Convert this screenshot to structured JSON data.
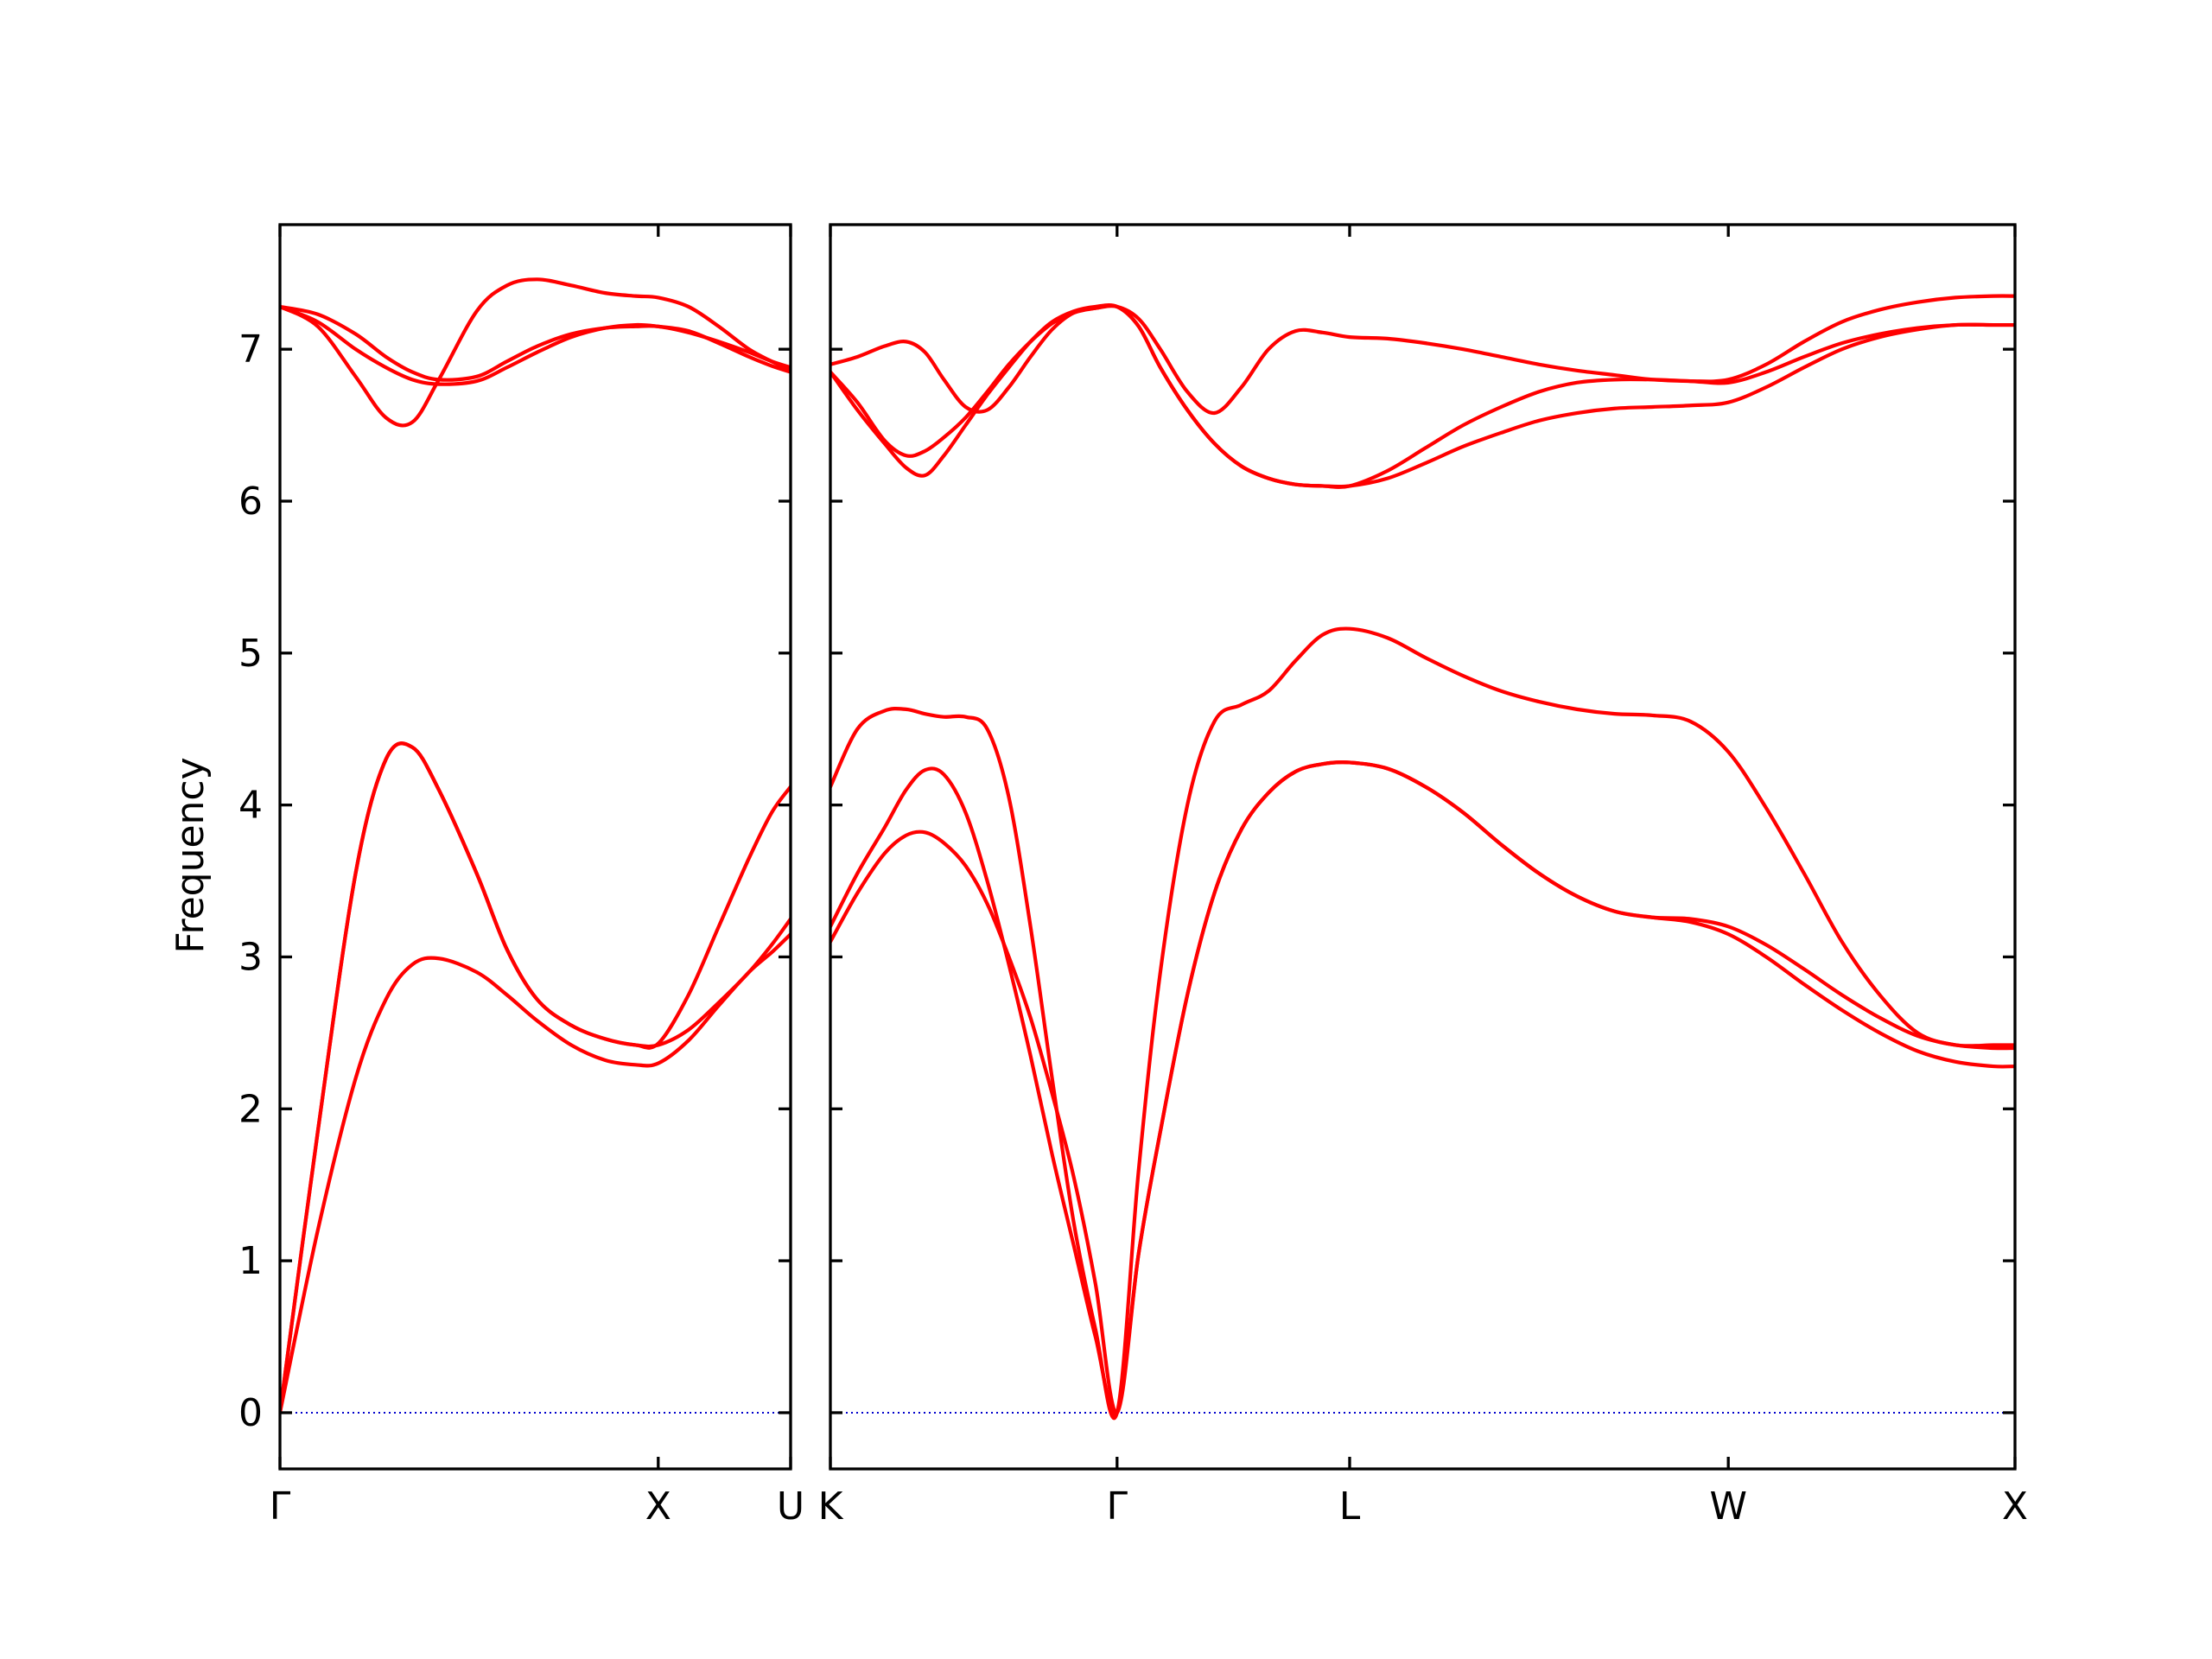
{
  "chart_data": {
    "type": "line",
    "title": "",
    "ylabel": "Frequency",
    "ylim": [
      -0.37,
      7.82
    ],
    "yticks": [
      0,
      1,
      2,
      3,
      4,
      5,
      6,
      7
    ],
    "colors": {
      "bands": "#ff0000",
      "zero_line": "#0000cc",
      "axes": "#000000"
    },
    "zero_line": {
      "y": 0,
      "style": "dotted"
    },
    "panels": [
      {
        "xlim": [
          0,
          1.35
        ],
        "xticks": [
          {
            "x": 0,
            "label": "Γ"
          },
          {
            "x": 1.0,
            "label": "X"
          },
          {
            "x": 1.35,
            "label": "U"
          }
        ],
        "series": [
          {
            "x": [
              0,
              0.1,
              0.2,
              0.28,
              0.35,
              0.42,
              0.52,
              0.6,
              0.68,
              0.77,
              0.86,
              0.94,
              1.0,
              1.08,
              1.16,
              1.24,
              1.3,
              1.35
            ],
            "y": [
              0,
              1.2,
              2.2,
              2.72,
              2.95,
              2.99,
              2.9,
              2.75,
              2.58,
              2.42,
              2.32,
              2.29,
              2.3,
              2.45,
              2.68,
              2.9,
              3.03,
              3.15
            ]
          },
          {
            "x": [
              0,
              0.1,
              0.2,
              0.28,
              0.35,
              0.42,
              0.52,
              0.6,
              0.68,
              0.77,
              0.86,
              0.94,
              1.0,
              1.08,
              1.16,
              1.24,
              1.3,
              1.35
            ],
            "y": [
              0,
              1.85,
              3.55,
              4.3,
              4.38,
              4.1,
              3.55,
              3.05,
              2.72,
              2.55,
              2.46,
              2.42,
              2.42,
              2.52,
              2.7,
              2.9,
              3.08,
              3.25
            ]
          },
          {
            "x": [
              0,
              0.1,
              0.2,
              0.28,
              0.35,
              0.42,
              0.52,
              0.6,
              0.68,
              0.77,
              0.86,
              0.94,
              1.0,
              1.08,
              1.16,
              1.24,
              1.3,
              1.35
            ],
            "y": [
              0,
              1.85,
              3.55,
              4.3,
              4.38,
              4.1,
              3.55,
              3.05,
              2.72,
              2.55,
              2.46,
              2.42,
              2.43,
              2.75,
              3.2,
              3.65,
              3.95,
              4.12
            ]
          },
          {
            "x": [
              0,
              0.1,
              0.2,
              0.28,
              0.35,
              0.42,
              0.52,
              0.6,
              0.68,
              0.77,
              0.86,
              0.94,
              1.0,
              1.08,
              1.16,
              1.24,
              1.3,
              1.35
            ],
            "y": [
              7.28,
              7.18,
              7.0,
              6.88,
              6.8,
              6.77,
              6.79,
              6.88,
              6.98,
              7.08,
              7.14,
              7.16,
              7.15,
              7.12,
              7.04,
              6.95,
              6.89,
              6.85
            ]
          },
          {
            "x": [
              0,
              0.1,
              0.2,
              0.28,
              0.35,
              0.42,
              0.52,
              0.6,
              0.68,
              0.77,
              0.86,
              0.94,
              1.0,
              1.08,
              1.16,
              1.24,
              1.3,
              1.35
            ],
            "y": [
              7.28,
              7.15,
              6.82,
              6.55,
              6.52,
              6.8,
              7.25,
              7.42,
              7.46,
              7.42,
              7.37,
              7.35,
              7.34,
              7.28,
              7.15,
              7.0,
              6.92,
              6.86
            ]
          },
          {
            "x": [
              0,
              0.1,
              0.2,
              0.28,
              0.35,
              0.42,
              0.52,
              0.6,
              0.68,
              0.77,
              0.86,
              0.94,
              1.0,
              1.08,
              1.16,
              1.24,
              1.3,
              1.35
            ],
            "y": [
              7.28,
              7.23,
              7.1,
              6.95,
              6.85,
              6.8,
              6.82,
              6.92,
              7.02,
              7.1,
              7.14,
              7.15,
              7.15,
              7.11,
              7.05,
              6.98,
              6.92,
              6.88
            ]
          }
        ]
      },
      {
        "xlim": [
          0,
          4.38
        ],
        "xticks": [
          {
            "x": 0,
            "label": "K"
          },
          {
            "x": 1.06,
            "label": "Γ"
          },
          {
            "x": 1.92,
            "label": "L"
          },
          {
            "x": 3.32,
            "label": "W"
          },
          {
            "x": 4.38,
            "label": "X"
          }
        ],
        "series": [
          {
            "x": [
              0,
              0.1,
              0.2,
              0.28,
              0.35,
              0.42,
              0.5,
              0.58,
              0.66,
              0.74,
              0.82,
              0.9,
              0.98,
              1.06,
              1.14,
              1.22,
              1.32,
              1.42,
              1.52,
              1.62,
              1.72,
              1.82,
              1.92,
              2.06,
              2.2,
              2.34,
              2.48,
              2.62,
              2.76,
              2.9,
              3.04,
              3.18,
              3.32,
              3.46,
              3.6,
              3.74,
              3.88,
              4.02,
              4.16,
              4.3,
              4.38
            ],
            "y": [
              3.1,
              3.42,
              3.68,
              3.8,
              3.82,
              3.75,
              3.6,
              3.35,
              3.0,
              2.6,
              2.1,
              1.55,
              0.85,
              0,
              1.05,
              1.85,
              2.75,
              3.42,
              3.84,
              4.08,
              4.22,
              4.27,
              4.28,
              4.24,
              4.12,
              3.95,
              3.74,
              3.55,
              3.4,
              3.3,
              3.26,
              3.23,
              3.15,
              3.0,
              2.82,
              2.65,
              2.5,
              2.38,
              2.31,
              2.28,
              2.28
            ]
          },
          {
            "x": [
              0,
              0.1,
              0.2,
              0.28,
              0.35,
              0.42,
              0.5,
              0.58,
              0.66,
              0.74,
              0.82,
              0.9,
              0.98,
              1.06,
              1.14,
              1.22,
              1.32,
              1.42,
              1.52,
              1.62,
              1.72,
              1.82,
              1.92,
              2.06,
              2.2,
              2.34,
              2.48,
              2.62,
              2.76,
              2.9,
              3.04,
              3.18,
              3.32,
              3.46,
              3.6,
              3.74,
              3.88,
              4.02,
              4.16,
              4.3,
              4.38
            ],
            "y": [
              3.2,
              3.55,
              3.85,
              4.1,
              4.23,
              4.2,
              3.95,
              3.5,
              2.95,
              2.35,
              1.7,
              1.1,
              0.5,
              0,
              1.05,
              1.85,
              2.75,
              3.42,
              3.84,
              4.08,
              4.22,
              4.27,
              4.28,
              4.24,
              4.12,
              3.95,
              3.74,
              3.55,
              3.4,
              3.3,
              3.26,
              3.25,
              3.2,
              3.08,
              2.92,
              2.75,
              2.6,
              2.48,
              2.42,
              2.4,
              2.4
            ]
          },
          {
            "x": [
              0,
              0.1,
              0.2,
              0.28,
              0.35,
              0.42,
              0.5,
              0.58,
              0.66,
              0.74,
              0.82,
              0.9,
              0.98,
              1.06,
              1.14,
              1.22,
              1.32,
              1.42,
              1.52,
              1.62,
              1.72,
              1.82,
              1.92,
              2.06,
              2.2,
              2.34,
              2.48,
              2.62,
              2.76,
              2.9,
              3.04,
              3.18,
              3.32,
              3.46,
              3.6,
              3.74,
              3.88,
              4.02,
              4.16,
              4.3,
              4.38
            ],
            "y": [
              4.12,
              4.5,
              4.62,
              4.63,
              4.6,
              4.58,
              4.58,
              4.5,
              4.05,
              3.2,
              2.2,
              1.25,
              0.55,
              0,
              1.6,
              2.9,
              4.0,
              4.55,
              4.66,
              4.75,
              4.95,
              5.12,
              5.16,
              5.1,
              4.97,
              4.85,
              4.75,
              4.68,
              4.63,
              4.6,
              4.59,
              4.55,
              4.35,
              3.98,
              3.55,
              3.1,
              2.75,
              2.5,
              2.42,
              2.42,
              2.42
            ]
          },
          {
            "x": [
              0,
              0.1,
              0.2,
              0.28,
              0.35,
              0.42,
              0.5,
              0.58,
              0.66,
              0.74,
              0.82,
              0.9,
              0.98,
              1.06,
              1.14,
              1.22,
              1.32,
              1.42,
              1.52,
              1.62,
              1.72,
              1.82,
              1.92,
              2.06,
              2.2,
              2.34,
              2.48,
              2.62,
              2.76,
              2.9,
              3.04,
              3.18,
              3.32,
              3.46,
              3.6,
              3.74,
              3.88,
              4.02,
              4.16,
              4.3,
              4.38
            ],
            "y": [
              6.85,
              6.65,
              6.4,
              6.3,
              6.33,
              6.42,
              6.55,
              6.72,
              6.9,
              7.05,
              7.17,
              7.24,
              7.27,
              7.28,
              7.15,
              6.88,
              6.6,
              6.38,
              6.23,
              6.15,
              6.11,
              6.1,
              6.1,
              6.2,
              6.35,
              6.5,
              6.62,
              6.72,
              6.78,
              6.8,
              6.8,
              6.79,
              6.78,
              6.85,
              6.95,
              7.04,
              7.1,
              7.14,
              7.16,
              7.16,
              7.16
            ]
          },
          {
            "x": [
              0,
              0.1,
              0.2,
              0.28,
              0.35,
              0.42,
              0.5,
              0.58,
              0.66,
              0.74,
              0.82,
              0.9,
              0.98,
              1.06,
              1.14,
              1.22,
              1.32,
              1.42,
              1.52,
              1.62,
              1.72,
              1.82,
              1.92,
              2.06,
              2.2,
              2.34,
              2.48,
              2.62,
              2.76,
              2.9,
              3.04,
              3.18,
              3.32,
              3.46,
              3.6,
              3.74,
              3.88,
              4.02,
              4.16,
              4.3,
              4.38
            ],
            "y": [
              6.85,
              6.6,
              6.38,
              6.22,
              6.17,
              6.3,
              6.5,
              6.7,
              6.88,
              7.05,
              7.18,
              7.25,
              7.28,
              7.28,
              7.15,
              6.88,
              6.6,
              6.38,
              6.23,
              6.15,
              6.11,
              6.1,
              6.1,
              6.15,
              6.25,
              6.36,
              6.45,
              6.53,
              6.58,
              6.61,
              6.62,
              6.63,
              6.65,
              6.75,
              6.88,
              7.0,
              7.08,
              7.13,
              7.16,
              7.16,
              7.16
            ]
          },
          {
            "x": [
              0,
              0.1,
              0.2,
              0.28,
              0.35,
              0.42,
              0.5,
              0.58,
              0.66,
              0.74,
              0.82,
              0.9,
              0.98,
              1.06,
              1.14,
              1.22,
              1.32,
              1.42,
              1.52,
              1.62,
              1.72,
              1.82,
              1.92,
              2.06,
              2.2,
              2.34,
              2.48,
              2.62,
              2.76,
              2.9,
              3.04,
              3.18,
              3.32,
              3.46,
              3.6,
              3.74,
              3.88,
              4.02,
              4.16,
              4.3,
              4.38
            ],
            "y": [
              6.9,
              6.95,
              7.02,
              7.05,
              6.98,
              6.8,
              6.62,
              6.6,
              6.75,
              6.95,
              7.13,
              7.24,
              7.27,
              7.28,
              7.2,
              7.0,
              6.72,
              6.58,
              6.75,
              7.0,
              7.12,
              7.11,
              7.08,
              7.07,
              7.04,
              7.0,
              6.95,
              6.9,
              6.86,
              6.83,
              6.8,
              6.79,
              6.8,
              6.9,
              7.05,
              7.18,
              7.26,
              7.31,
              7.34,
              7.35,
              7.35
            ]
          }
        ]
      }
    ]
  }
}
